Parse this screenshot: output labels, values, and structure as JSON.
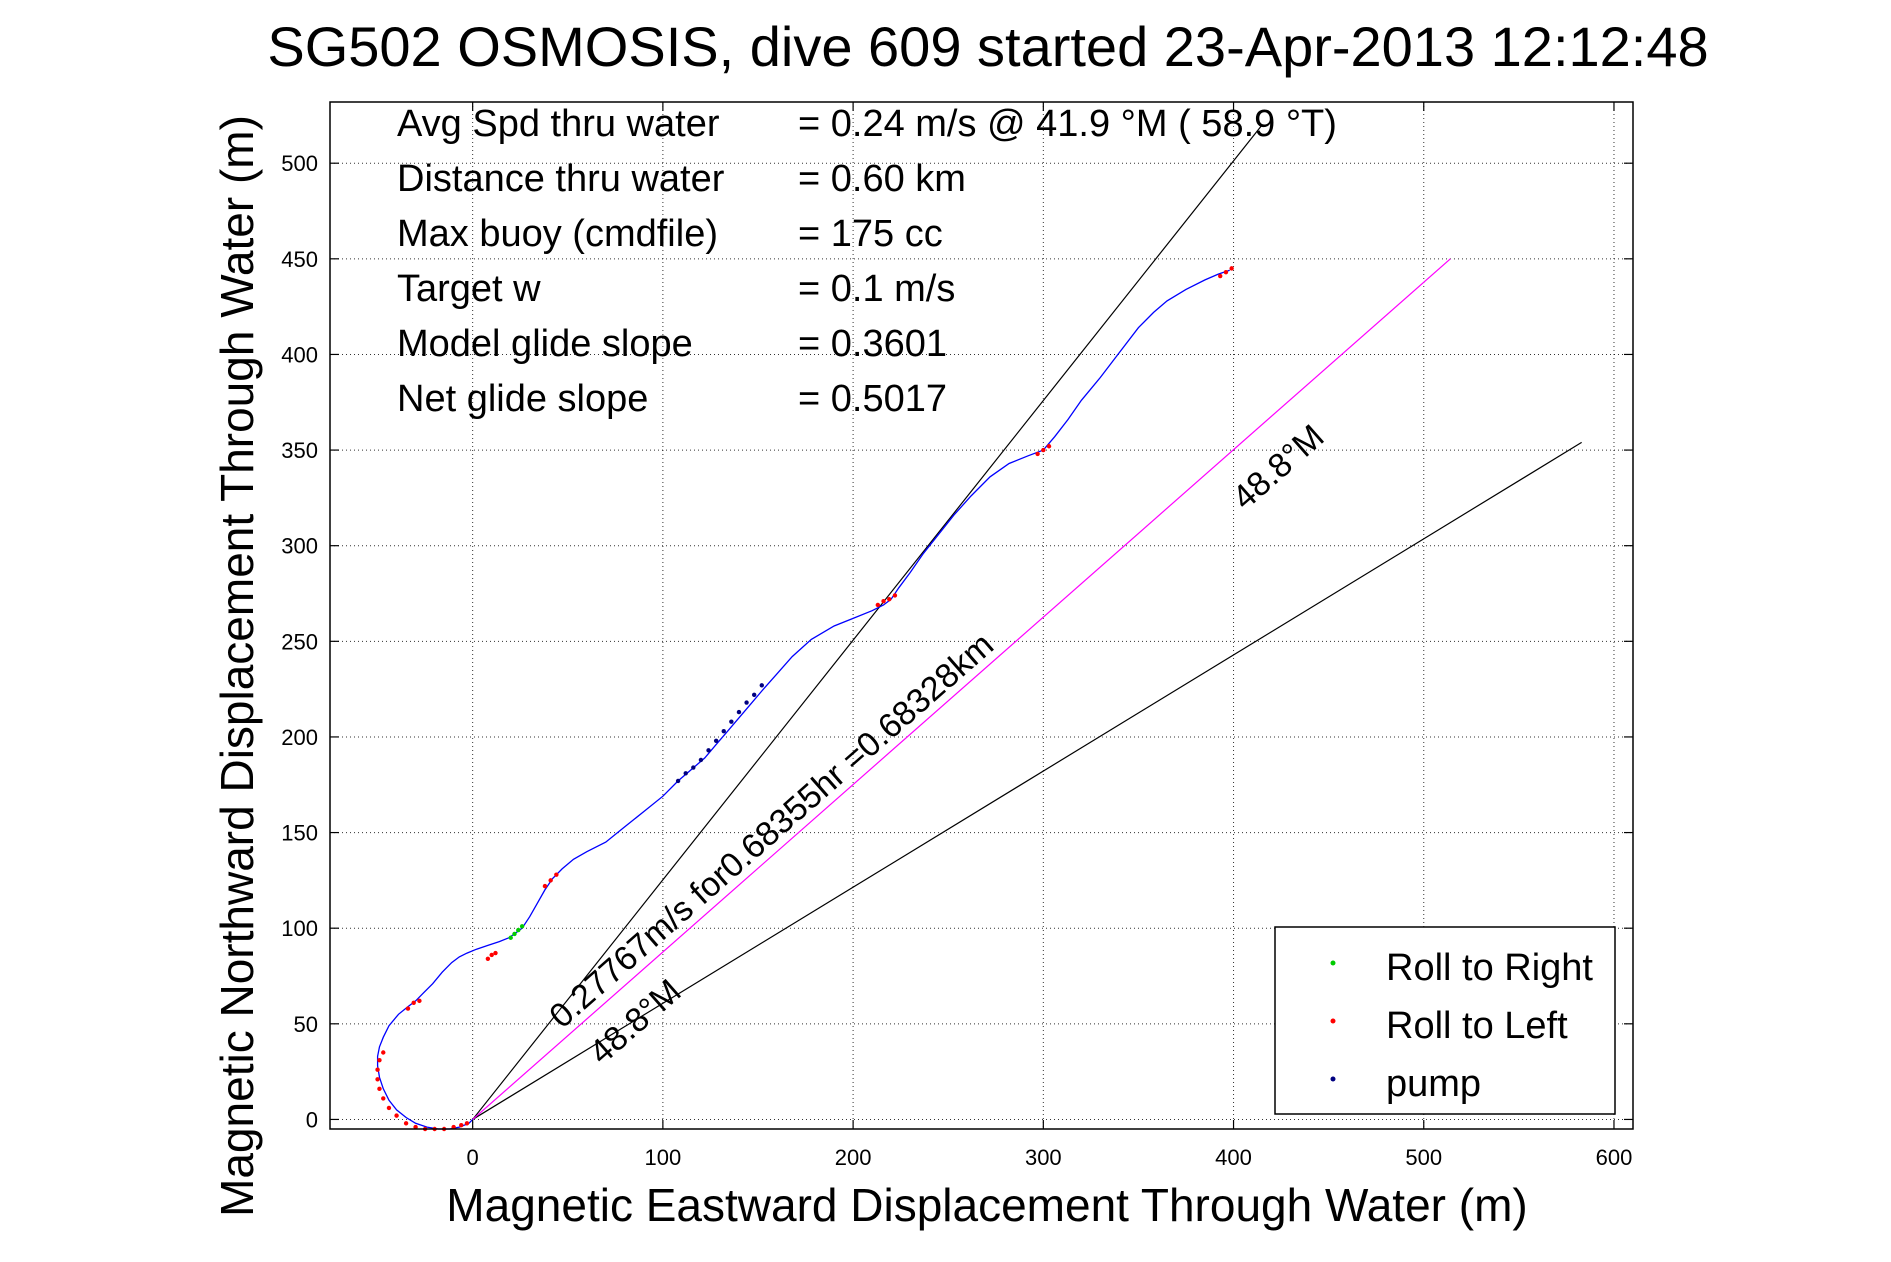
{
  "chart_data": {
    "type": "line",
    "title": "SG502 OSMOSIS, dive 609 started 23-Apr-2013 12:12:48",
    "xlabel": "Magnetic Eastward Displacement Through Water (m)",
    "ylabel": "Magnetic Northward Displacement Through Water (m)",
    "xlim": [
      -75,
      610
    ],
    "ylim": [
      -5,
      532
    ],
    "xticks": [
      0,
      100,
      200,
      300,
      400,
      500,
      600
    ],
    "yticks": [
      0,
      50,
      100,
      150,
      200,
      250,
      300,
      350,
      400,
      450,
      500
    ],
    "grid": true,
    "legend_position": "bottom-right",
    "info": [
      {
        "label": "Avg Spd thru water",
        "value": "=  0.24 m/s @  41.9 °M ( 58.9 °T)"
      },
      {
        "label": "Distance thru water",
        "value": "=  0.60 km"
      },
      {
        "label": "Max buoy (cmdfile)",
        "value": "= 175 cc"
      },
      {
        "label": "Target w",
        "value": "= 0.1 m/s"
      },
      {
        "label": "Model glide slope",
        "value": "= 0.3601"
      },
      {
        "label": "Net glide slope",
        "value": "= 0.5017"
      }
    ],
    "annotations": {
      "track_label": "0.27767m/s for0.68355hr =0.68328km",
      "heading_label_center": "48.8°M",
      "heading_label_lower": "48.8°M"
    },
    "guide_lines": [
      {
        "x": [
          0,
          415
        ],
        "y": [
          0,
          520
        ],
        "color": "#000000"
      },
      {
        "x": [
          0,
          583
        ],
        "y": [
          0,
          354
        ],
        "color": "#000000"
      },
      {
        "x": [
          0,
          514
        ],
        "y": [
          0,
          450
        ],
        "color": "#ff00ff"
      }
    ],
    "track": {
      "name": "track",
      "color": "#0000ff",
      "x": [
        0,
        -2,
        -7,
        -12,
        -18,
        -24,
        -30,
        -35,
        -40,
        -44,
        -47,
        -49,
        -50,
        -50,
        -49,
        -47,
        -44,
        -39,
        -34,
        -30,
        -26,
        -21,
        -16,
        -11,
        -7,
        -3,
        2,
        8,
        14,
        19,
        22,
        26,
        30,
        34,
        38,
        42,
        47,
        53,
        60,
        70,
        80,
        90,
        100,
        108,
        115,
        122,
        128,
        134,
        140,
        146,
        152,
        160,
        168,
        178,
        190,
        200,
        210,
        216,
        220,
        224,
        230,
        237,
        245,
        253,
        262,
        272,
        282,
        292,
        300,
        306,
        313,
        320,
        330,
        340,
        350,
        358,
        365,
        375,
        385,
        392,
        398
      ],
      "y": [
        0,
        -2,
        -4,
        -5,
        -5,
        -4,
        -2,
        1,
        5,
        10,
        16,
        22,
        28,
        33,
        38,
        43,
        49,
        55,
        59,
        62,
        66,
        71,
        77,
        82,
        85,
        87,
        89,
        91,
        93,
        95,
        97,
        100,
        106,
        113,
        120,
        126,
        131,
        136,
        140,
        145,
        153,
        161,
        169,
        177,
        183,
        189,
        196,
        203,
        210,
        217,
        224,
        233,
        242,
        251,
        258,
        262,
        266,
        269,
        272,
        278,
        286,
        296,
        306,
        316,
        326,
        336,
        343,
        347,
        350,
        357,
        366,
        376,
        388,
        401,
        414,
        422,
        428,
        434,
        439,
        442,
        444
      ]
    },
    "series": [
      {
        "name": "Roll to Right",
        "color": "#00cc00",
        "x": [
          20,
          22,
          24,
          26
        ],
        "y": [
          95,
          97,
          99,
          101
        ]
      },
      {
        "name": "Roll to Left",
        "color": "#ff0000",
        "x": [
          -3,
          -6,
          -10,
          -15,
          -20,
          -25,
          -30,
          -35,
          -40,
          -44,
          -47,
          -49,
          -50,
          -50,
          -49,
          -47,
          -34,
          -31,
          -28,
          8,
          10,
          12,
          38,
          41,
          44,
          213,
          216,
          219,
          222,
          297,
          300,
          303,
          393,
          396,
          399
        ],
        "y": [
          -2,
          -3,
          -4,
          -5,
          -5,
          -5,
          -4,
          -2,
          2,
          6,
          11,
          16,
          21,
          26,
          31,
          35,
          58,
          61,
          62,
          84,
          86,
          87,
          122,
          125,
          128,
          269,
          271,
          272,
          274,
          348,
          350,
          352,
          441,
          443,
          445
        ]
      },
      {
        "name": "pump",
        "color": "#000080",
        "x": [
          108,
          112,
          116,
          120,
          124,
          128,
          132,
          136,
          140,
          144,
          148,
          152
        ],
        "y": [
          177,
          181,
          184,
          188,
          193,
          198,
          203,
          208,
          213,
          218,
          222,
          227
        ]
      }
    ]
  }
}
